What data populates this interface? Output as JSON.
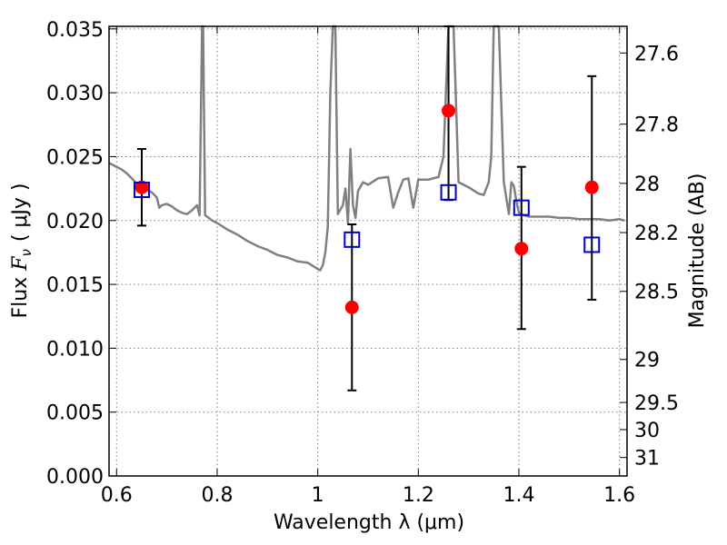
{
  "chart_data": {
    "type": "scatter",
    "xlabel": "Wavelength  λ (μm)",
    "ylabel": "Flux  F_ν  ( μJy )",
    "ylabel_parts": {
      "prefix": "Flux ",
      "symbol": "F",
      "subscript": "ν",
      "unit": "( μJy )"
    },
    "ylabel_right": "Magnitude (AB)",
    "xlim": [
      0.585,
      1.615
    ],
    "ylim": [
      0.0,
      0.0352
    ],
    "grid": true,
    "x_ticks": [
      {
        "value": 0.6,
        "label": "0.6"
      },
      {
        "value": 0.8,
        "label": "0.8"
      },
      {
        "value": 1.0,
        "label": "1"
      },
      {
        "value": 1.2,
        "label": "1.2"
      },
      {
        "value": 1.4,
        "label": "1.4"
      },
      {
        "value": 1.6,
        "label": "1.6"
      }
    ],
    "y_ticks": [
      {
        "value": 0.0,
        "label": "0.000"
      },
      {
        "value": 0.005,
        "label": "0.005"
      },
      {
        "value": 0.01,
        "label": "0.010"
      },
      {
        "value": 0.015,
        "label": "0.015"
      },
      {
        "value": 0.02,
        "label": "0.020"
      },
      {
        "value": 0.025,
        "label": "0.025"
      },
      {
        "value": 0.03,
        "label": "0.030"
      },
      {
        "value": 0.035,
        "label": "0.035"
      }
    ],
    "right_ticks": [
      {
        "mag": 27.6,
        "label": "27.6"
      },
      {
        "mag": 27.8,
        "label": "27.8"
      },
      {
        "mag": 28.0,
        "label": "28"
      },
      {
        "mag": 28.2,
        "label": "28.2"
      },
      {
        "mag": 28.5,
        "label": "28.5"
      },
      {
        "mag": 29.0,
        "label": "29"
      },
      {
        "mag": 29.5,
        "label": "29.5"
      },
      {
        "mag": 30.0,
        "label": "30"
      },
      {
        "mag": 31.0,
        "label": "31"
      }
    ],
    "colors": {
      "spectrum": "#808080",
      "observed": "#ff0000",
      "model": "#0000cc",
      "errorbar": "#000000",
      "grid": "#808080"
    },
    "spectrum": {
      "x": [
        0.585,
        0.6,
        0.61,
        0.62,
        0.63,
        0.64,
        0.65,
        0.66,
        0.67,
        0.68,
        0.685,
        0.69,
        0.7,
        0.71,
        0.72,
        0.73,
        0.74,
        0.75,
        0.76,
        0.765,
        0.77,
        0.772,
        0.776,
        0.78,
        0.79,
        0.8,
        0.82,
        0.84,
        0.86,
        0.88,
        0.9,
        0.92,
        0.94,
        0.96,
        0.98,
        1.0,
        1.005,
        1.01,
        1.015,
        1.02,
        1.025,
        1.03,
        1.035,
        1.04,
        1.05,
        1.055,
        1.06,
        1.065,
        1.07,
        1.075,
        1.08,
        1.09,
        1.1,
        1.12,
        1.14,
        1.15,
        1.16,
        1.17,
        1.18,
        1.19,
        1.2,
        1.21,
        1.22,
        1.23,
        1.24,
        1.25,
        1.26,
        1.27,
        1.28,
        1.3,
        1.32,
        1.33,
        1.34,
        1.345,
        1.35,
        1.36,
        1.37,
        1.38,
        1.385,
        1.39,
        1.395,
        1.4,
        1.41,
        1.42,
        1.44,
        1.46,
        1.48,
        1.5,
        1.52,
        1.54,
        1.56,
        1.58,
        1.6,
        1.61
      ],
      "y": [
        0.0245,
        0.0242,
        0.024,
        0.0237,
        0.0233,
        0.0229,
        0.0226,
        0.0224,
        0.0222,
        0.0218,
        0.021,
        0.0212,
        0.0213,
        0.0211,
        0.0208,
        0.0206,
        0.0205,
        0.0208,
        0.0212,
        0.0204,
        0.0352,
        0.0352,
        0.0204,
        0.0203,
        0.02,
        0.0198,
        0.0193,
        0.0189,
        0.0184,
        0.018,
        0.0177,
        0.0173,
        0.0171,
        0.0168,
        0.0167,
        0.0162,
        0.0161,
        0.0165,
        0.0175,
        0.0195,
        0.03,
        0.0352,
        0.0352,
        0.0205,
        0.0212,
        0.0225,
        0.0198,
        0.0256,
        0.0212,
        0.0202,
        0.0223,
        0.023,
        0.0228,
        0.0233,
        0.0234,
        0.021,
        0.0222,
        0.0232,
        0.0233,
        0.021,
        0.0232,
        0.0232,
        0.0232,
        0.0233,
        0.0234,
        0.025,
        0.0352,
        0.0352,
        0.023,
        0.0226,
        0.0221,
        0.022,
        0.023,
        0.025,
        0.0352,
        0.0352,
        0.023,
        0.0205,
        0.023,
        0.0227,
        0.0215,
        0.0206,
        0.0204,
        0.0203,
        0.0203,
        0.0203,
        0.0202,
        0.0202,
        0.0201,
        0.0201,
        0.0201,
        0.02,
        0.0201,
        0.02
      ]
    },
    "observed": [
      {
        "x": 0.65,
        "y": 0.0226
      },
      {
        "x": 1.068,
        "y": 0.0132
      },
      {
        "x": 1.26,
        "y": 0.0286
      },
      {
        "x": 1.405,
        "y": 0.0178
      },
      {
        "x": 1.545,
        "y": 0.0226
      }
    ],
    "errorbars": [
      {
        "x": 0.65,
        "low": 0.0196,
        "high": 0.0256
      },
      {
        "x": 1.068,
        "low": 0.0067,
        "high": 0.0197
      },
      {
        "x": 1.26,
        "low": 0.0216,
        "high": 0.0352
      },
      {
        "x": 1.405,
        "low": 0.0115,
        "high": 0.0242
      },
      {
        "x": 1.545,
        "low": 0.0138,
        "high": 0.0313
      }
    ],
    "model": [
      {
        "x": 0.65,
        "y": 0.0224
      },
      {
        "x": 1.068,
        "y": 0.0185
      },
      {
        "x": 1.26,
        "y": 0.0222
      },
      {
        "x": 1.405,
        "y": 0.021
      },
      {
        "x": 1.545,
        "y": 0.0181
      }
    ]
  }
}
